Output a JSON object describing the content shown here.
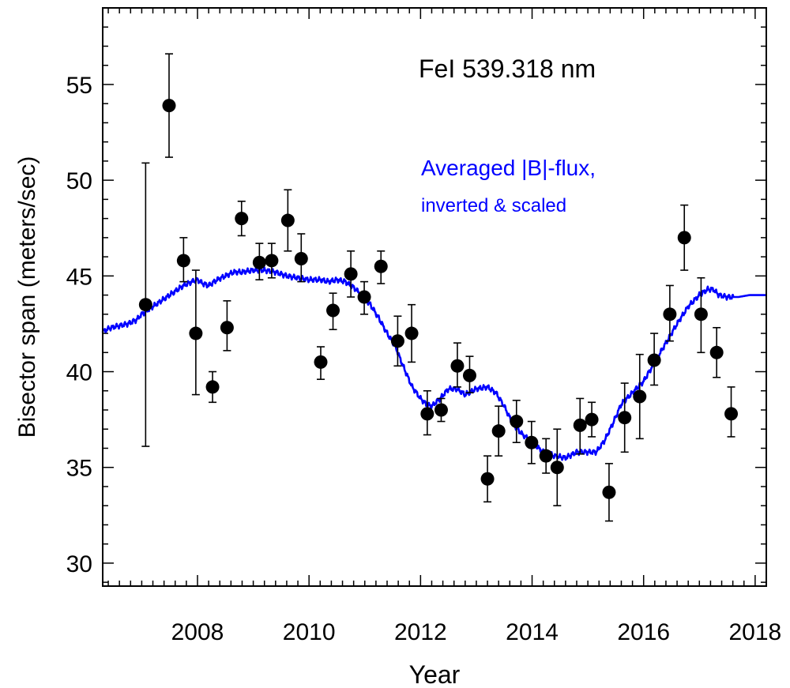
{
  "chart_data": {
    "type": "scatter",
    "title": "FeI 539.318 nm",
    "xlabel": "Year",
    "ylabel": "Bisector span (meters/sec)",
    "xlim": [
      2006.3,
      2018.2
    ],
    "ylim": [
      28.8,
      59.0
    ],
    "x_ticks": [
      2008,
      2010,
      2012,
      2014,
      2016,
      2018
    ],
    "y_ticks": [
      30,
      35,
      40,
      45,
      50,
      55
    ],
    "annotations": {
      "line1": "Averaged |B|-flux,",
      "line2": "inverted & scaled"
    },
    "colors": {
      "points": "#000000",
      "curve": "#0000ff",
      "axes": "#000000"
    },
    "series": [
      {
        "name": "Bisector span",
        "kind": "points",
        "points": [
          {
            "x": 2007.07,
            "y": 43.5,
            "err_low": 36.1,
            "err_high": 50.9
          },
          {
            "x": 2007.49,
            "y": 53.9,
            "err_low": 51.2,
            "err_high": 56.6
          },
          {
            "x": 2007.75,
            "y": 45.8,
            "err_low": 44.7,
            "err_high": 47.0
          },
          {
            "x": 2007.97,
            "y": 42.0,
            "err_low": 38.8,
            "err_high": 45.3
          },
          {
            "x": 2008.27,
            "y": 39.2,
            "err_low": 38.4,
            "err_high": 40.0
          },
          {
            "x": 2008.53,
            "y": 42.3,
            "err_low": 41.1,
            "err_high": 43.7
          },
          {
            "x": 2008.79,
            "y": 48.0,
            "err_low": 47.1,
            "err_high": 48.9
          },
          {
            "x": 2009.11,
            "y": 45.7,
            "err_low": 44.8,
            "err_high": 46.7
          },
          {
            "x": 2009.33,
            "y": 45.8,
            "err_low": 44.9,
            "err_high": 46.7
          },
          {
            "x": 2009.62,
            "y": 47.9,
            "err_low": 46.3,
            "err_high": 49.5
          },
          {
            "x": 2009.86,
            "y": 45.9,
            "err_low": 44.7,
            "err_high": 47.2
          },
          {
            "x": 2010.21,
            "y": 40.5,
            "err_low": 39.6,
            "err_high": 41.3
          },
          {
            "x": 2010.43,
            "y": 43.2,
            "err_low": 42.2,
            "err_high": 44.1
          },
          {
            "x": 2010.75,
            "y": 45.1,
            "err_low": 43.9,
            "err_high": 46.3
          },
          {
            "x": 2010.99,
            "y": 43.9,
            "err_low": 43.0,
            "err_high": 44.7
          },
          {
            "x": 2011.29,
            "y": 45.5,
            "err_low": 44.6,
            "err_high": 46.3
          },
          {
            "x": 2011.59,
            "y": 41.6,
            "err_low": 40.3,
            "err_high": 42.9
          },
          {
            "x": 2011.84,
            "y": 42.0,
            "err_low": 40.5,
            "err_high": 43.5
          },
          {
            "x": 2012.12,
            "y": 37.8,
            "err_low": 36.7,
            "err_high": 39.0
          },
          {
            "x": 2012.37,
            "y": 38.0,
            "err_low": 37.4,
            "err_high": 38.6
          },
          {
            "x": 2012.66,
            "y": 40.3,
            "err_low": 39.2,
            "err_high": 41.5
          },
          {
            "x": 2012.88,
            "y": 39.8,
            "err_low": 38.9,
            "err_high": 40.8
          },
          {
            "x": 2013.2,
            "y": 34.4,
            "err_low": 33.2,
            "err_high": 35.6
          },
          {
            "x": 2013.4,
            "y": 36.9,
            "err_low": 35.6,
            "err_high": 38.2
          },
          {
            "x": 2013.72,
            "y": 37.4,
            "err_low": 36.3,
            "err_high": 38.5
          },
          {
            "x": 2013.99,
            "y": 36.3,
            "err_low": 35.2,
            "err_high": 37.4
          },
          {
            "x": 2014.25,
            "y": 35.6,
            "err_low": 34.7,
            "err_high": 36.5
          },
          {
            "x": 2014.45,
            "y": 35.0,
            "err_low": 33.0,
            "err_high": 37.0
          },
          {
            "x": 2014.86,
            "y": 37.2,
            "err_low": 35.7,
            "err_high": 38.6
          },
          {
            "x": 2015.07,
            "y": 37.5,
            "err_low": 36.6,
            "err_high": 38.4
          },
          {
            "x": 2015.38,
            "y": 33.7,
            "err_low": 32.2,
            "err_high": 35.2
          },
          {
            "x": 2015.66,
            "y": 37.6,
            "err_low": 35.8,
            "err_high": 39.4
          },
          {
            "x": 2015.93,
            "y": 38.7,
            "err_low": 36.5,
            "err_high": 40.9
          },
          {
            "x": 2016.19,
            "y": 40.6,
            "err_low": 39.3,
            "err_high": 42.0
          },
          {
            "x": 2016.47,
            "y": 43.0,
            "err_low": 41.6,
            "err_high": 44.5
          },
          {
            "x": 2016.73,
            "y": 47.0,
            "err_low": 45.3,
            "err_high": 48.7
          },
          {
            "x": 2017.03,
            "y": 43.0,
            "err_low": 41.0,
            "err_high": 44.9
          },
          {
            "x": 2017.31,
            "y": 41.0,
            "err_low": 39.7,
            "err_high": 42.3
          },
          {
            "x": 2017.57,
            "y": 37.8,
            "err_low": 36.6,
            "err_high": 39.2
          }
        ]
      },
      {
        "name": "Averaged |B|-flux, inverted & scaled",
        "kind": "line",
        "x": [
          2006.3,
          2006.45,
          2006.6,
          2006.75,
          2006.9,
          2007.0,
          2007.15,
          2007.3,
          2007.45,
          2007.6,
          2007.75,
          2007.9,
          2008.0,
          2008.1,
          2008.2,
          2008.35,
          2008.5,
          2008.65,
          2008.8,
          2009.0,
          2009.2,
          2009.4,
          2009.6,
          2009.8,
          2010.0,
          2010.2,
          2010.35,
          2010.5,
          2010.65,
          2010.8,
          2010.95,
          2011.1,
          2011.25,
          2011.4,
          2011.55,
          2011.7,
          2011.85,
          2012.0,
          2012.1,
          2012.2,
          2012.35,
          2012.5,
          2012.65,
          2012.8,
          2013.0,
          2013.2,
          2013.35,
          2013.5,
          2013.65,
          2013.8,
          2014.0,
          2014.2,
          2014.4,
          2014.6,
          2014.8,
          2015.0,
          2015.15,
          2015.3,
          2015.45,
          2015.6,
          2015.8,
          2016.0,
          2016.2,
          2016.4,
          2016.6,
          2016.8,
          2017.0,
          2017.15,
          2017.25,
          2017.35,
          2017.5,
          2017.7,
          2017.9,
          2018.2
        ],
        "y": [
          42.1,
          42.3,
          42.4,
          42.5,
          42.7,
          43.0,
          43.3,
          43.6,
          43.9,
          44.2,
          44.5,
          44.7,
          44.8,
          44.6,
          44.5,
          44.8,
          45.0,
          45.2,
          45.2,
          45.3,
          45.3,
          45.2,
          45.0,
          44.9,
          44.8,
          44.8,
          44.7,
          44.8,
          44.7,
          44.4,
          44.0,
          43.5,
          42.8,
          42.0,
          41.3,
          40.2,
          39.2,
          38.6,
          38.3,
          38.2,
          38.6,
          39.1,
          39.1,
          38.8,
          39.1,
          39.2,
          38.9,
          38.2,
          37.3,
          36.8,
          36.3,
          35.8,
          35.6,
          35.5,
          35.8,
          35.8,
          35.8,
          36.4,
          37.3,
          38.3,
          38.9,
          39.5,
          40.5,
          41.5,
          42.5,
          43.4,
          44.0,
          44.3,
          44.3,
          44.0,
          43.9,
          43.9,
          44.0,
          44.0
        ]
      }
    ]
  }
}
